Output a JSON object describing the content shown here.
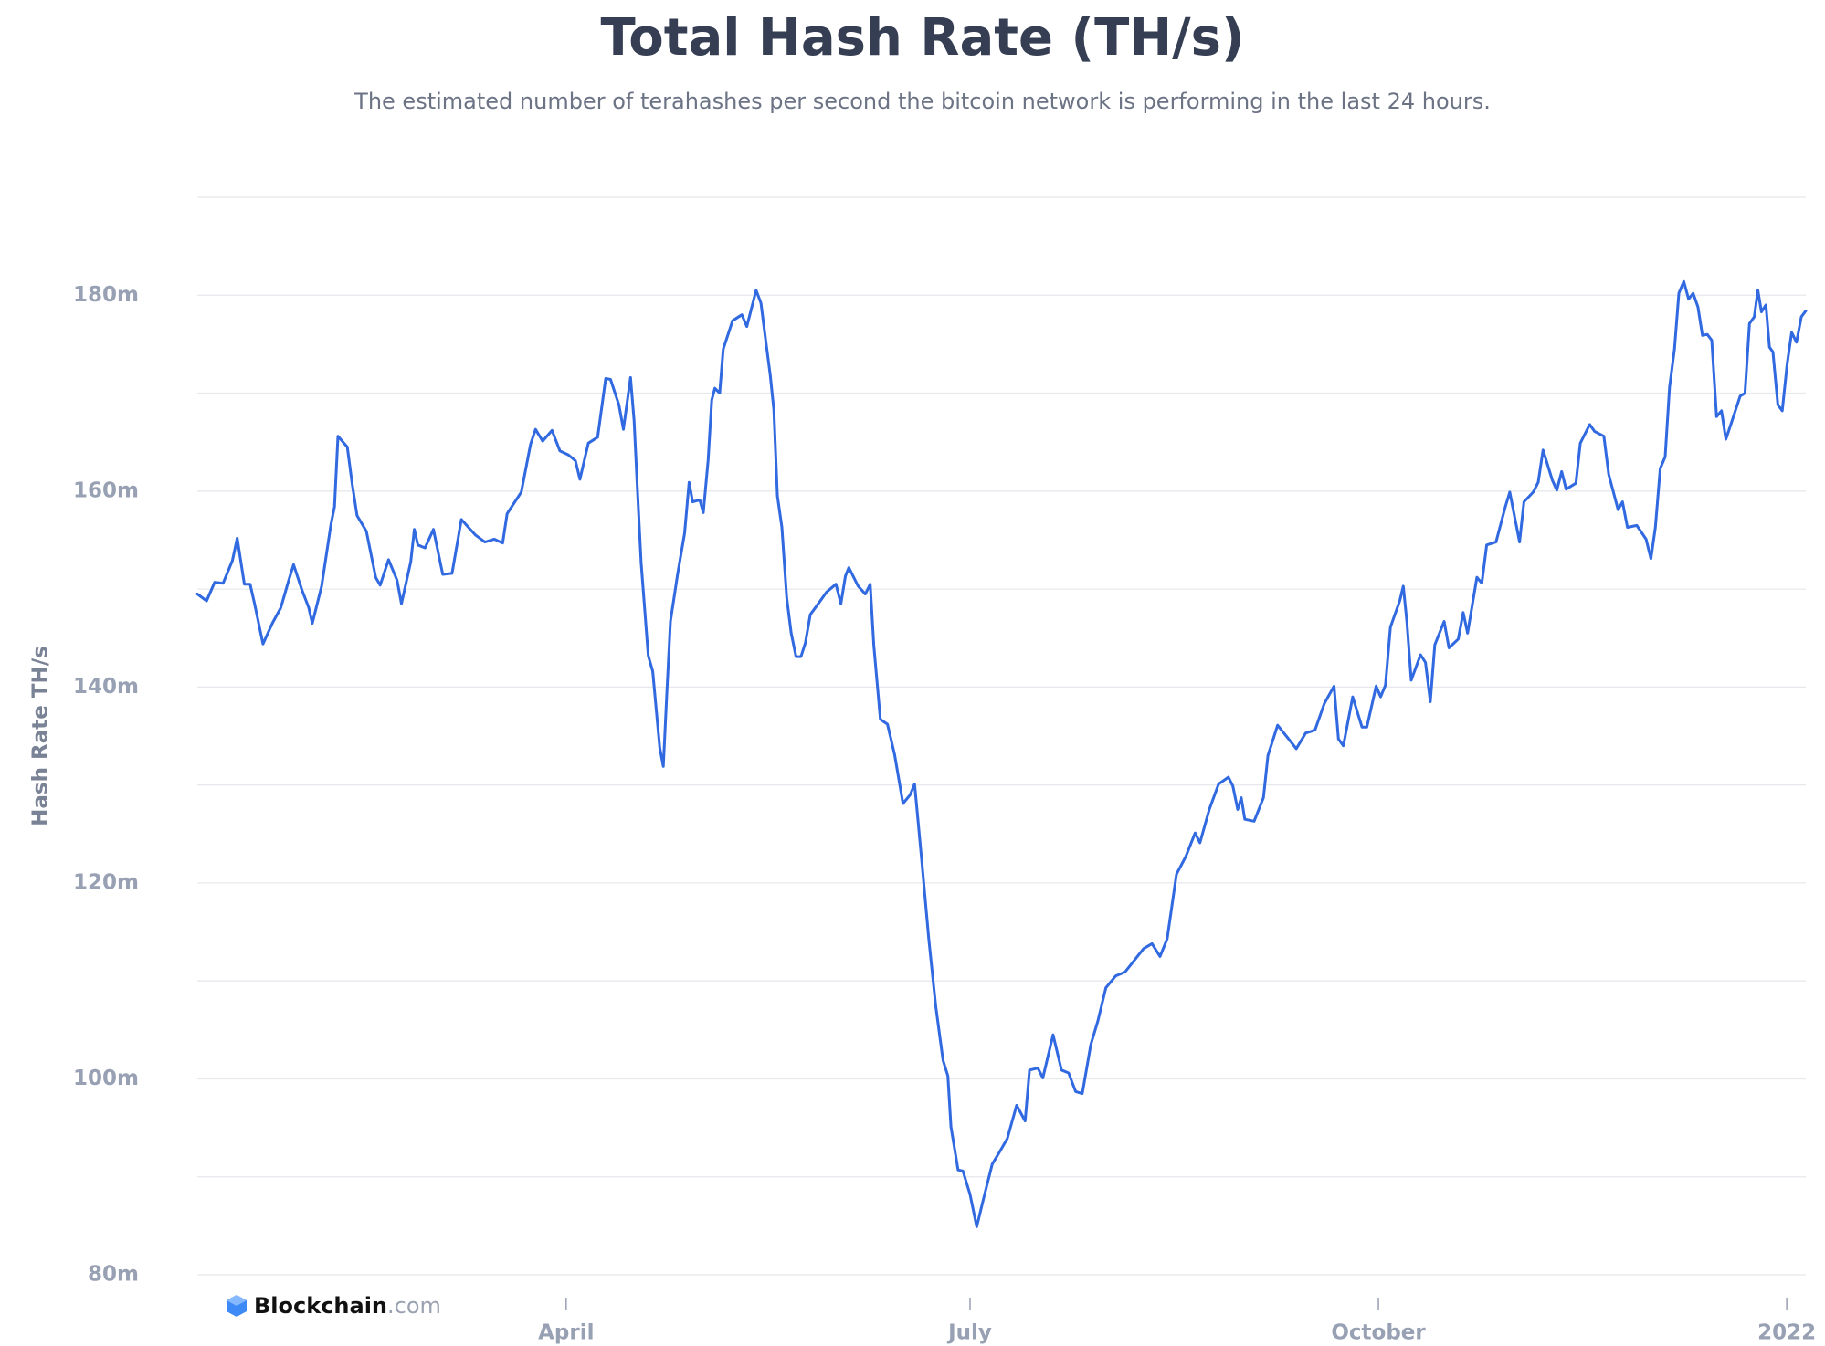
{
  "chart_data": {
    "type": "line",
    "title": "Total Hash Rate (TH/s)",
    "subtitle": "The estimated number of terahashes per second the bitcoin network is performing in the last 24 hours.",
    "y_label": "Hash Rate TH/s",
    "grid": true,
    "xlim": [
      6.9,
      369.3
    ],
    "xticks": [
      {
        "value": 90,
        "label": "April"
      },
      {
        "value": 181,
        "label": "July"
      },
      {
        "value": 273,
        "label": "October"
      },
      {
        "value": 365,
        "label": "2022"
      }
    ],
    "ylim": [
      80000000,
      190000000
    ],
    "yticks": [
      {
        "value": 80000000,
        "label": "80m"
      },
      {
        "value": 90000000,
        "label": null
      },
      {
        "value": 100000000,
        "label": "100m"
      },
      {
        "value": 110000000,
        "label": null
      },
      {
        "value": 120000000,
        "label": "120m"
      },
      {
        "value": 130000000,
        "label": null
      },
      {
        "value": 140000000,
        "label": "140m"
      },
      {
        "value": 150000000,
        "label": null
      },
      {
        "value": 160000000,
        "label": "160m"
      },
      {
        "value": 170000000,
        "label": null
      },
      {
        "value": 180000000,
        "label": "180m"
      },
      {
        "value": 190000000,
        "label": null
      }
    ],
    "x": [
      6.9,
      9.0,
      10.8,
      12.7,
      14.8,
      15.9,
      17.5,
      18.8,
      19.8,
      21.7,
      23.8,
      25.7,
      27.5,
      28.6,
      30.4,
      32.0,
      32.8,
      34.9,
      37.0,
      37.8,
      38.6,
      40.7,
      41.8,
      42.9,
      45.0,
      47.1,
      48.1,
      50.0,
      51.9,
      52.9,
      55.0,
      55.8,
      56.6,
      58.2,
      60.1,
      62.2,
      64.3,
      66.4,
      69.6,
      71.7,
      73.8,
      75.7,
      76.7,
      79.9,
      82.0,
      83.1,
      84.7,
      86.8,
      88.6,
      90.5,
      92.1,
      93.1,
      95.0,
      97.1,
      98.9,
      100.0,
      101.9,
      102.9,
      104.5,
      105.3,
      106.1,
      106.9,
      108.5,
      109.5,
      111.1,
      111.9,
      112.7,
      113.5,
      115.1,
      116.7,
      117.7,
      118.5,
      120.1,
      120.9,
      122.0,
      122.8,
      123.5,
      124.6,
      125.4,
      127.5,
      129.6,
      130.7,
      132.8,
      133.9,
      134.9,
      136.0,
      136.8,
      137.6,
      138.6,
      139.7,
      140.7,
      141.8,
      142.9,
      143.9,
      145.0,
      146.8,
      148.7,
      150.8,
      151.9,
      152.9,
      153.7,
      155.8,
      157.4,
      158.5,
      159.3,
      160.8,
      162.4,
      164.0,
      165.9,
      167.5,
      168.5,
      170.1,
      171.7,
      173.3,
      174.9,
      176.0,
      176.7,
      178.3,
      179.4,
      181.0,
      182.5,
      184.1,
      186.0,
      187.6,
      189.4,
      191.5,
      193.4,
      194.4,
      196.3,
      197.4,
      199.7,
      201.6,
      203.2,
      204.8,
      206.3,
      208.2,
      209.8,
      211.6,
      213.8,
      215.9,
      218.0,
      220.1,
      222.0,
      223.8,
      225.4,
      227.5,
      229.6,
      231.7,
      232.8,
      234.9,
      237.0,
      239.2,
      240.2,
      241.3,
      242.1,
      242.9,
      245.0,
      247.1,
      248.1,
      250.3,
      252.4,
      254.5,
      256.6,
      258.7,
      260.8,
      263.0,
      264.0,
      265.1,
      267.2,
      269.3,
      270.4,
      272.5,
      273.5,
      274.6,
      275.7,
      277.8,
      278.6,
      279.4,
      280.4,
      282.5,
      283.6,
      284.7,
      285.7,
      287.8,
      288.9,
      291.0,
      292.1,
      293.1,
      295.2,
      296.3,
      297.4,
      299.5,
      301.6,
      302.6,
      304.8,
      305.8,
      307.9,
      309.0,
      310.1,
      312.2,
      313.2,
      314.3,
      315.3,
      317.5,
      318.5,
      320.6,
      321.7,
      323.8,
      324.9,
      327.0,
      328.0,
      329.1,
      331.2,
      333.3,
      334.4,
      335.4,
      336.5,
      337.6,
      338.6,
      339.7,
      340.7,
      341.8,
      342.9,
      343.9,
      345.0,
      346.0,
      347.1,
      348.1,
      349.2,
      350.3,
      351.3,
      352.4,
      354.5,
      355.6,
      356.6,
      357.7,
      358.5,
      359.3,
      360.3,
      361.1,
      361.9,
      363.0,
      364.0,
      365.1,
      366.1,
      367.2,
      368.3,
      369.3
    ],
    "series": [
      {
        "color": "#3169e0",
        "values": [
          149500000,
          148800000,
          150700000,
          150600000,
          152900000,
          155200000,
          150500000,
          150500000,
          148500000,
          144400000,
          146500000,
          148100000,
          150900000,
          152500000,
          150000000,
          148100000,
          146500000,
          150300000,
          156600000,
          158400000,
          165600000,
          164500000,
          160700000,
          157500000,
          155900000,
          151200000,
          150400000,
          153000000,
          150900000,
          148500000,
          152800000,
          156100000,
          154500000,
          154200000,
          156100000,
          151500000,
          151600000,
          157100000,
          155500000,
          154800000,
          155100000,
          154700000,
          157700000,
          159900000,
          164800000,
          166300000,
          165100000,
          166200000,
          164100000,
          163700000,
          163100000,
          161200000,
          164900000,
          165500000,
          171500000,
          171400000,
          168800000,
          166300000,
          171600000,
          167200000,
          159900000,
          152700000,
          143200000,
          141600000,
          133800000,
          131900000,
          139500000,
          146700000,
          151500000,
          155700000,
          160900000,
          158900000,
          159100000,
          157800000,
          163200000,
          169300000,
          170500000,
          170000000,
          174500000,
          177400000,
          178000000,
          176800000,
          180500000,
          179200000,
          175600000,
          171800000,
          168300000,
          159500000,
          156300000,
          149100000,
          145500000,
          143100000,
          143100000,
          144500000,
          147400000,
          148500000,
          149700000,
          150500000,
          148500000,
          151300000,
          152200000,
          150300000,
          149500000,
          150500000,
          144300000,
          136700000,
          136200000,
          133100000,
          128100000,
          129000000,
          130100000,
          122400000,
          114300000,
          107300000,
          101900000,
          100300000,
          95100000,
          90700000,
          90600000,
          88200000,
          84900000,
          87900000,
          91300000,
          92500000,
          93900000,
          97300000,
          95700000,
          100900000,
          101100000,
          100100000,
          104500000,
          100900000,
          100600000,
          98700000,
          98500000,
          103500000,
          105900000,
          109300000,
          110500000,
          110900000,
          112100000,
          113300000,
          113800000,
          112500000,
          114300000,
          120900000,
          122700000,
          125100000,
          124100000,
          127500000,
          130100000,
          130800000,
          129900000,
          127500000,
          128700000,
          126500000,
          126300000,
          128700000,
          133000000,
          136100000,
          134900000,
          133700000,
          135300000,
          135600000,
          138300000,
          140100000,
          134700000,
          134000000,
          139000000,
          135900000,
          135900000,
          140100000,
          139000000,
          140200000,
          146100000,
          148800000,
          150300000,
          146700000,
          140700000,
          143300000,
          142500000,
          138500000,
          144300000,
          146700000,
          144000000,
          144900000,
          147600000,
          145500000,
          151200000,
          150600000,
          154500000,
          154800000,
          158400000,
          159900000,
          154800000,
          158900000,
          159900000,
          160900000,
          164200000,
          161100000,
          160100000,
          162000000,
          160200000,
          160800000,
          164900000,
          166800000,
          166100000,
          165600000,
          161700000,
          158100000,
          158900000,
          156300000,
          156500000,
          155100000,
          153100000,
          156300000,
          162300000,
          163500000,
          170600000,
          174500000,
          180200000,
          181400000,
          179600000,
          180200000,
          178800000,
          175900000,
          176000000,
          175400000,
          167600000,
          168200000,
          165300000,
          166800000,
          169700000,
          170000000,
          177100000,
          177800000,
          180500000,
          178300000,
          179000000,
          174700000,
          174200000,
          168800000,
          168200000,
          173000000,
          176200000,
          175200000,
          177800000,
          178400000
        ]
      }
    ]
  },
  "brand": {
    "name": "Blockchain",
    "suffix": ".com"
  }
}
